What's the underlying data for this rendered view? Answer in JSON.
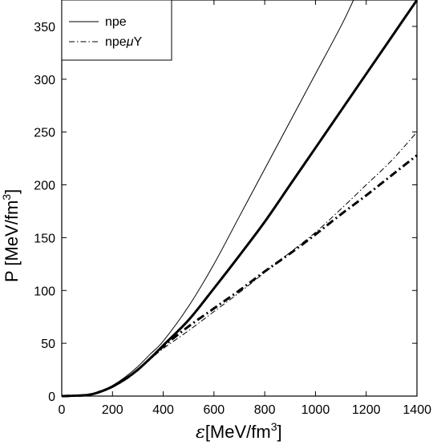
{
  "chart_data": {
    "type": "line",
    "xlabel_prefix": "ε",
    "xlabel_text": "[MeV/fm",
    "xlabel_sup": "3",
    "xlabel_close": "]",
    "ylabel_text": "P [MeV/fm",
    "ylabel_sup": "3",
    "ylabel_close": "]",
    "xlim": [
      0,
      1400
    ],
    "ylim": [
      0,
      375
    ],
    "x_ticks": [
      0,
      200,
      400,
      600,
      800,
      1000,
      1200,
      1400
    ],
    "y_ticks": [
      0,
      50,
      100,
      150,
      200,
      250,
      300,
      350
    ],
    "legend": {
      "position": "top-left",
      "entries": [
        {
          "label": "npe",
          "style": "solid"
        },
        {
          "label_prefix": "npe",
          "label_mu": "μ",
          "label_suffix": "Y",
          "style": "dash-dot"
        }
      ]
    },
    "series": [
      {
        "name": "npe",
        "style": "solid",
        "weight": "thin",
        "x": [
          0,
          100,
          150,
          200,
          250,
          300,
          350,
          400,
          500,
          600,
          700,
          800,
          900,
          1000,
          1100,
          1150
        ],
        "y": [
          0,
          1,
          4,
          10,
          18,
          28,
          40,
          52,
          85,
          125,
          170,
          215,
          260,
          305,
          350,
          375
        ]
      },
      {
        "name": "npe",
        "style": "solid",
        "weight": "thick",
        "x": [
          0,
          100,
          150,
          200,
          250,
          300,
          350,
          400,
          500,
          600,
          700,
          800,
          900,
          1000,
          1100,
          1200,
          1300,
          1400
        ],
        "y": [
          0,
          1,
          4,
          9,
          16,
          25,
          36,
          48,
          72,
          102,
          133,
          165,
          200,
          235,
          270,
          305,
          340,
          375
        ]
      },
      {
        "name": "npeμY",
        "style": "dash-dot",
        "weight": "thin",
        "x": [
          0,
          100,
          150,
          200,
          250,
          300,
          350,
          400,
          500,
          600,
          700,
          800,
          900,
          1000,
          1100,
          1200,
          1300,
          1400
        ],
        "y": [
          0,
          1,
          4,
          9,
          16,
          25,
          35,
          45,
          62,
          80,
          98,
          117,
          136,
          155,
          177,
          200,
          223,
          250
        ]
      },
      {
        "name": "npeμY",
        "style": "dash-dot",
        "weight": "thick",
        "x": [
          0,
          100,
          150,
          200,
          250,
          300,
          350,
          400,
          500,
          600,
          700,
          800,
          900,
          1000,
          1100,
          1200,
          1300,
          1400
        ],
        "y": [
          0,
          1,
          4,
          9,
          16,
          25,
          36,
          47,
          66,
          83,
          100,
          118,
          135,
          153,
          172,
          190,
          209,
          228
        ]
      }
    ]
  }
}
